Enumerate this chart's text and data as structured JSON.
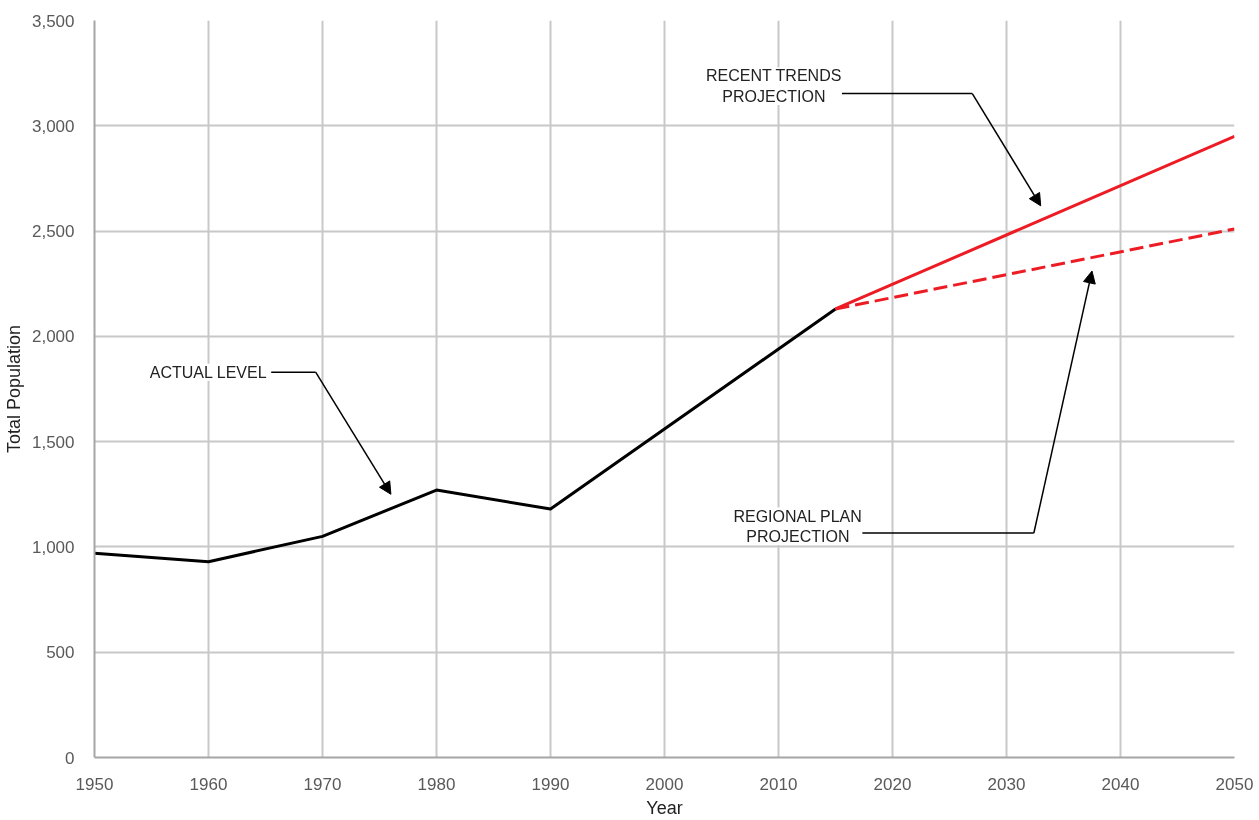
{
  "chart_data": {
    "type": "line",
    "xlabel": "Year",
    "ylabel": "Total Population",
    "xlim": [
      1950,
      2050
    ],
    "ylim": [
      0,
      3500
    ],
    "xticks": [
      1950,
      1960,
      1970,
      1980,
      1990,
      2000,
      2010,
      2020,
      2030,
      2040,
      2050
    ],
    "yticks": [
      {
        "value": 0,
        "label": "0"
      },
      {
        "value": 500,
        "label": "500"
      },
      {
        "value": 1000,
        "label": "1,000"
      },
      {
        "value": 1500,
        "label": "1,500"
      },
      {
        "value": 2000,
        "label": "2,000"
      },
      {
        "value": 2500,
        "label": "2,500"
      },
      {
        "value": 3000,
        "label": "3,000"
      },
      {
        "value": 3500,
        "label": "3,500"
      }
    ],
    "grid": true,
    "series": [
      {
        "color": "#000000",
        "x": [
          1950,
          1960,
          1970,
          1980,
          1990,
          2015
        ],
        "values": [
          970,
          930,
          1050,
          1270,
          1180,
          2130
        ],
        "line_style": "solid"
      },
      {
        "color": "#ed1c24",
        "x": [
          2015,
          2050
        ],
        "values": [
          2130,
          2950
        ],
        "line_style": "solid"
      },
      {
        "color": "#ed1c24",
        "x": [
          2015,
          2050
        ],
        "values": [
          2130,
          2510
        ],
        "line_style": "dashed"
      }
    ],
    "annotations": [
      "ACTUAL LEVEL",
      "RECENT TRENDS\nPROJECTION",
      "REGIONAL PLAN\nPROJECTION"
    ]
  }
}
